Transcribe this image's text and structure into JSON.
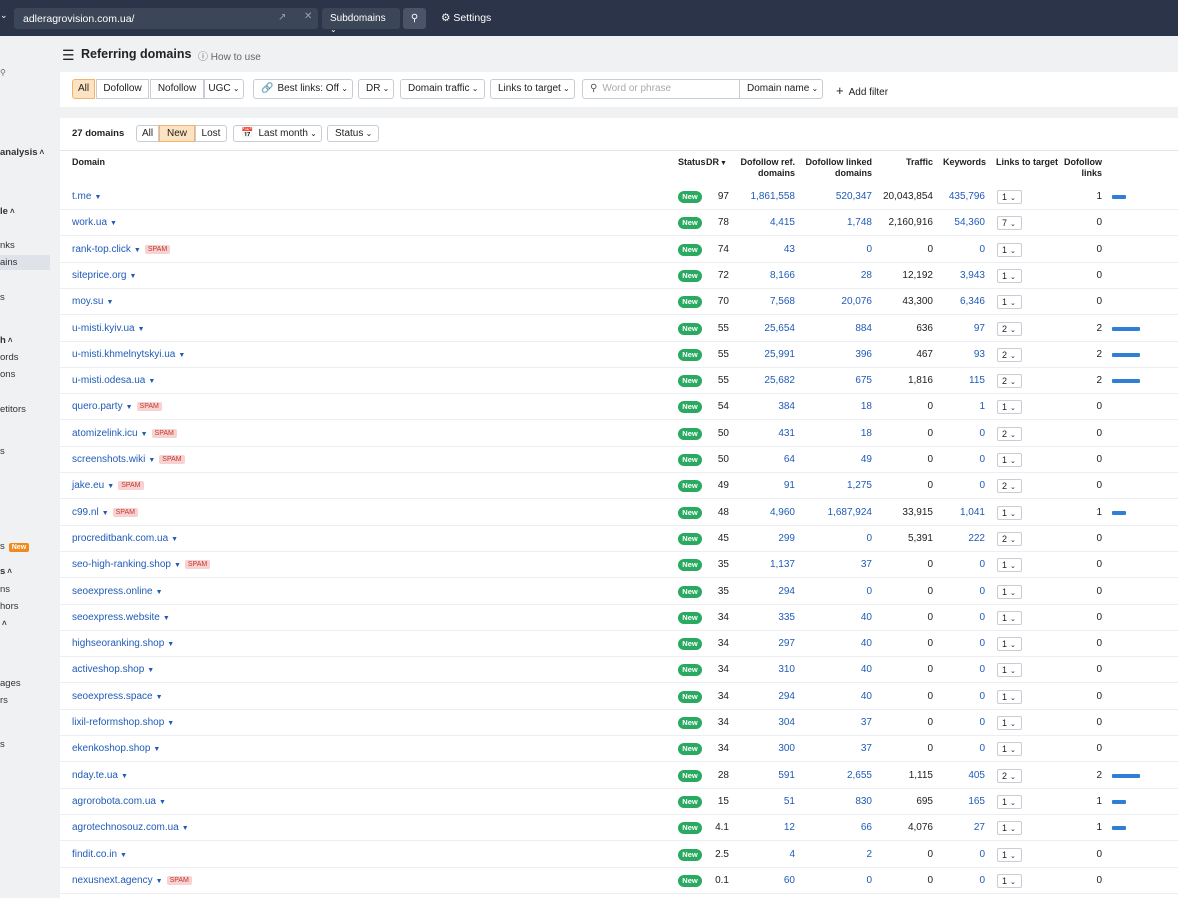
{
  "topbar": {
    "url": "adleragrovision.com.ua/",
    "mode": "Subdomains",
    "settings": "Settings"
  },
  "sidebar": {
    "items": [
      "analysis",
      "le",
      "nks",
      "ains",
      "s",
      "h",
      "ords",
      "ons",
      "etitors",
      "s",
      "s",
      "s",
      "ns",
      "hors",
      "",
      "ages",
      "rs",
      "s"
    ],
    "badge": "New"
  },
  "header": {
    "title": "Referring domains",
    "help": "How to use"
  },
  "filters": {
    "link_types": [
      "All",
      "Dofollow",
      "Nofollow",
      "UGC"
    ],
    "best_links": "Best links: Off",
    "dr": "DR",
    "domain_traffic": "Domain traffic",
    "links_to_target": "Links to target",
    "search_placeholder": "Word or phrase",
    "search_scope": "Domain name",
    "add_filter": "Add filter"
  },
  "summary": {
    "count": "27 domains",
    "tabs": [
      "All",
      "New",
      "Lost"
    ],
    "period": "Last month",
    "status": "Status"
  },
  "table": {
    "columns": [
      "Domain",
      "Status",
      "DR",
      "Dofollow ref. domains",
      "Dofollow linked domains",
      "Traffic",
      "Keywords",
      "Links to target",
      "Dofollow links"
    ],
    "rows": [
      {
        "domain": "t.me",
        "status": "New",
        "dr": "97",
        "ref": "1,861,558",
        "linked": "520,347",
        "traffic": "20,043,854",
        "keywords": "435,796",
        "ltt": "1",
        "dl": 1
      },
      {
        "domain": "work.ua",
        "status": "New",
        "dr": "78",
        "ref": "4,415",
        "linked": "1,748",
        "traffic": "2,160,916",
        "keywords": "54,360",
        "ltt": "7",
        "dl": 0
      },
      {
        "domain": "rank-top.click",
        "spam": "SPAM",
        "status": "New",
        "dr": "74",
        "ref": "43",
        "linked": "0",
        "traffic": "0",
        "keywords": "0",
        "ltt": "1",
        "dl": 0
      },
      {
        "domain": "siteprice.org",
        "status": "New",
        "dr": "72",
        "ref": "8,166",
        "linked": "28",
        "traffic": "12,192",
        "keywords": "3,943",
        "ltt": "1",
        "dl": 0
      },
      {
        "domain": "moy.su",
        "status": "New",
        "dr": "70",
        "ref": "7,568",
        "linked": "20,076",
        "traffic": "43,300",
        "keywords": "6,346",
        "ltt": "1",
        "dl": 0
      },
      {
        "domain": "u-misti.kyiv.ua",
        "status": "New",
        "dr": "55",
        "ref": "25,654",
        "linked": "884",
        "traffic": "636",
        "keywords": "97",
        "ltt": "2",
        "dl": 2
      },
      {
        "domain": "u-misti.khmelnytskyi.ua",
        "status": "New",
        "dr": "55",
        "ref": "25,991",
        "linked": "396",
        "traffic": "467",
        "keywords": "93",
        "ltt": "2",
        "dl": 2
      },
      {
        "domain": "u-misti.odesa.ua",
        "status": "New",
        "dr": "55",
        "ref": "25,682",
        "linked": "675",
        "traffic": "1,816",
        "keywords": "115",
        "ltt": "2",
        "dl": 2
      },
      {
        "domain": "quero.party",
        "spam": "SPAM",
        "status": "New",
        "dr": "54",
        "ref": "384",
        "linked": "18",
        "traffic": "0",
        "keywords": "1",
        "ltt": "1",
        "dl": 0
      },
      {
        "domain": "atomizelink.icu",
        "spam": "SPAM",
        "status": "New",
        "dr": "50",
        "ref": "431",
        "linked": "18",
        "traffic": "0",
        "keywords": "0",
        "ltt": "2",
        "dl": 0
      },
      {
        "domain": "screenshots.wiki",
        "spam": "SPAM",
        "status": "New",
        "dr": "50",
        "ref": "64",
        "linked": "49",
        "traffic": "0",
        "keywords": "0",
        "ltt": "1",
        "dl": 0
      },
      {
        "domain": "jake.eu",
        "spam": "SPAM",
        "status": "New",
        "dr": "49",
        "ref": "91",
        "linked": "1,275",
        "traffic": "0",
        "keywords": "0",
        "ltt": "2",
        "dl": 0
      },
      {
        "domain": "c99.nl",
        "spam": "SPAM",
        "status": "New",
        "dr": "48",
        "ref": "4,960",
        "linked": "1,687,924",
        "traffic": "33,915",
        "keywords": "1,041",
        "ltt": "1",
        "dl": 1
      },
      {
        "domain": "procreditbank.com.ua",
        "status": "New",
        "dr": "45",
        "ref": "299",
        "linked": "0",
        "traffic": "5,391",
        "keywords": "222",
        "ltt": "2",
        "dl": 0
      },
      {
        "domain": "seo-high-ranking.shop",
        "spam": "SPAM",
        "status": "New",
        "dr": "35",
        "ref": "1,137",
        "linked": "37",
        "traffic": "0",
        "keywords": "0",
        "ltt": "1",
        "dl": 0
      },
      {
        "domain": "seoexpress.online",
        "status": "New",
        "dr": "35",
        "ref": "294",
        "linked": "0",
        "traffic": "0",
        "keywords": "0",
        "ltt": "1",
        "dl": 0
      },
      {
        "domain": "seoexpress.website",
        "status": "New",
        "dr": "34",
        "ref": "335",
        "linked": "40",
        "traffic": "0",
        "keywords": "0",
        "ltt": "1",
        "dl": 0
      },
      {
        "domain": "highseoranking.shop",
        "status": "New",
        "dr": "34",
        "ref": "297",
        "linked": "40",
        "traffic": "0",
        "keywords": "0",
        "ltt": "1",
        "dl": 0
      },
      {
        "domain": "activeshop.shop",
        "status": "New",
        "dr": "34",
        "ref": "310",
        "linked": "40",
        "traffic": "0",
        "keywords": "0",
        "ltt": "1",
        "dl": 0
      },
      {
        "domain": "seoexpress.space",
        "status": "New",
        "dr": "34",
        "ref": "294",
        "linked": "40",
        "traffic": "0",
        "keywords": "0",
        "ltt": "1",
        "dl": 0
      },
      {
        "domain": "lixil-reformshop.shop",
        "status": "New",
        "dr": "34",
        "ref": "304",
        "linked": "37",
        "traffic": "0",
        "keywords": "0",
        "ltt": "1",
        "dl": 0
      },
      {
        "domain": "ekenkoshop.shop",
        "status": "New",
        "dr": "34",
        "ref": "300",
        "linked": "37",
        "traffic": "0",
        "keywords": "0",
        "ltt": "1",
        "dl": 0
      },
      {
        "domain": "nday.te.ua",
        "status": "New",
        "dr": "28",
        "ref": "591",
        "linked": "2,655",
        "traffic": "1,115",
        "keywords": "405",
        "ltt": "2",
        "dl": 2
      },
      {
        "domain": "agrorobota.com.ua",
        "status": "New",
        "dr": "15",
        "ref": "51",
        "linked": "830",
        "traffic": "695",
        "keywords": "165",
        "ltt": "1",
        "dl": 1
      },
      {
        "domain": "agrotechnosouz.com.ua",
        "status": "New",
        "dr": "4.1",
        "ref": "12",
        "linked": "66",
        "traffic": "4,076",
        "keywords": "27",
        "ltt": "1",
        "dl": 1
      },
      {
        "domain": "findit.co.in",
        "status": "New",
        "dr": "2.5",
        "ref": "4",
        "linked": "2",
        "traffic": "0",
        "keywords": "0",
        "ltt": "1",
        "dl": 0
      },
      {
        "domain": "nexusnext.agency",
        "spam": "SPAM",
        "status": "New",
        "dr": "0.1",
        "ref": "60",
        "linked": "0",
        "traffic": "0",
        "keywords": "0",
        "ltt": "1",
        "dl": 0
      }
    ]
  }
}
